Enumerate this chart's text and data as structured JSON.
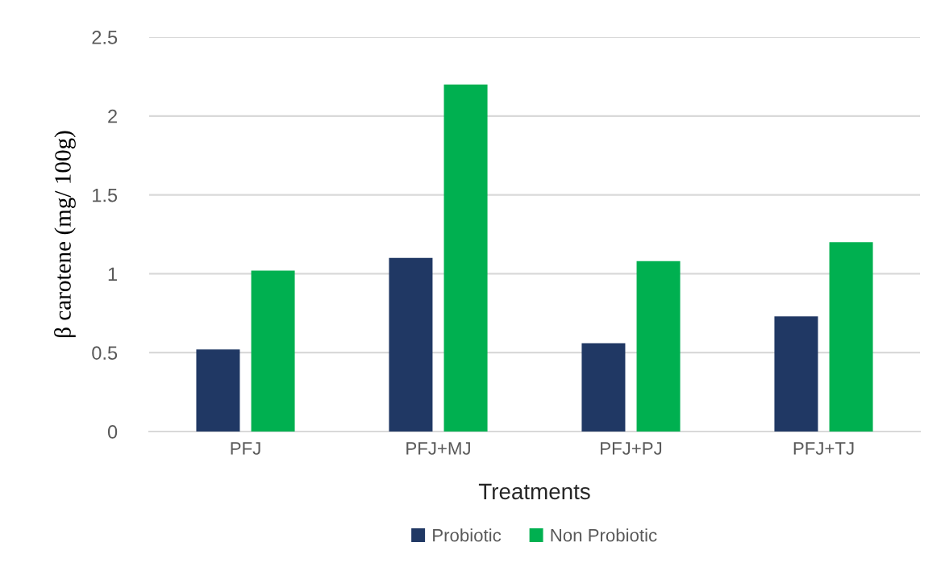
{
  "chart_data": {
    "type": "bar",
    "xlabel": "Treatments",
    "ylabel": "β carotene (mg/ 100g)",
    "categories": [
      "PFJ",
      "PFJ+MJ",
      "PFJ+PJ",
      "PFJ+TJ"
    ],
    "series": [
      {
        "name": "Probiotic",
        "color": "#203864",
        "values": [
          0.52,
          1.1,
          0.56,
          0.73
        ]
      },
      {
        "name": "Non Probiotic",
        "color": "#00b050",
        "values": [
          1.02,
          2.2,
          1.08,
          1.2
        ]
      }
    ],
    "ylim": [
      0,
      2.5
    ],
    "yticks": [
      0,
      0.5,
      1,
      1.5,
      2,
      2.5
    ],
    "grid": "y",
    "legend": "bottom"
  }
}
